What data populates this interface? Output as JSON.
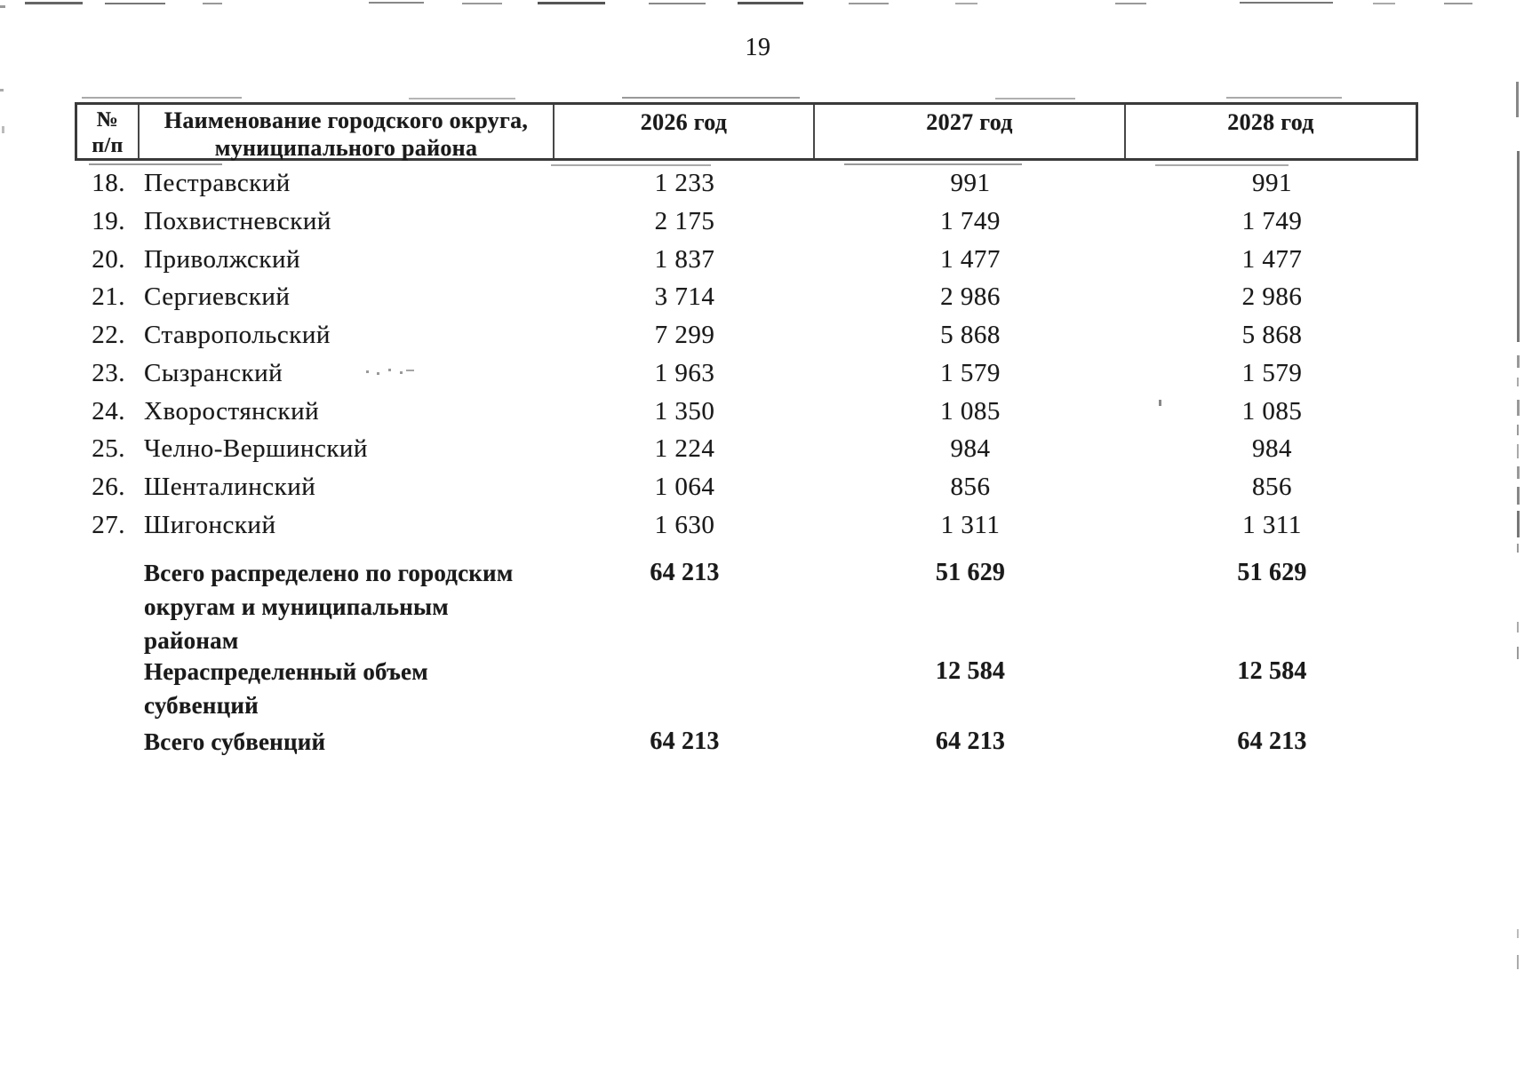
{
  "page": {
    "number": "19"
  },
  "colors": {
    "paper": "#ffffff",
    "ink": "#1a1a1a",
    "table_border": "#3a3a3a"
  },
  "table": {
    "header": {
      "num_line1": "№",
      "num_line2": "п/п",
      "name_line1": "Наименование городского округа,",
      "name_line2": "муниципального района",
      "years": [
        "2026 год",
        "2027 год",
        "2028 год"
      ]
    },
    "rows": [
      {
        "num": "18.",
        "name": "Пестравский",
        "y2026": "1 233",
        "y2027": "991",
        "y2028": "991"
      },
      {
        "num": "19.",
        "name": "Похвистневский",
        "y2026": "2 175",
        "y2027": "1 749",
        "y2028": "1 749"
      },
      {
        "num": "20.",
        "name": "Приволжский",
        "y2026": "1 837",
        "y2027": "1 477",
        "y2028": "1 477"
      },
      {
        "num": "21.",
        "name": "Сергиевский",
        "y2026": "3 714",
        "y2027": "2 986",
        "y2028": "2 986"
      },
      {
        "num": "22.",
        "name": "Ставропольский",
        "y2026": "7 299",
        "y2027": "5 868",
        "y2028": "5 868"
      },
      {
        "num": "23.",
        "name": "Сызранский",
        "y2026": "1 963",
        "y2027": "1 579",
        "y2028": "1 579"
      },
      {
        "num": "24.",
        "name": "Хворостянский",
        "y2026": "1 350",
        "y2027": "1 085",
        "y2028": "1 085"
      },
      {
        "num": "25.",
        "name": "Челно-Вершинский",
        "y2026": "1 224",
        "y2027": "984",
        "y2028": "984"
      },
      {
        "num": "26.",
        "name": "Шенталинский",
        "y2026": "1 064",
        "y2027": "856",
        "y2028": "856"
      },
      {
        "num": "27.",
        "name": "Шигонский",
        "y2026": "1 630",
        "y2027": "1 311",
        "y2028": "1 311"
      }
    ],
    "summary": [
      {
        "lines": [
          "Всего распределено по городским",
          "округам и муниципальным",
          "районам"
        ],
        "y2026": "64 213",
        "y2027": "51 629",
        "y2028": "51 629"
      },
      {
        "lines": [
          "Нераспределенный объем",
          "субвенций"
        ],
        "y2026": "",
        "y2027": "12 584",
        "y2028": "12 584"
      },
      {
        "lines": [
          "Всего субвенций"
        ],
        "y2026": "64 213",
        "y2027": "64 213",
        "y2028": "64 213"
      }
    ]
  }
}
